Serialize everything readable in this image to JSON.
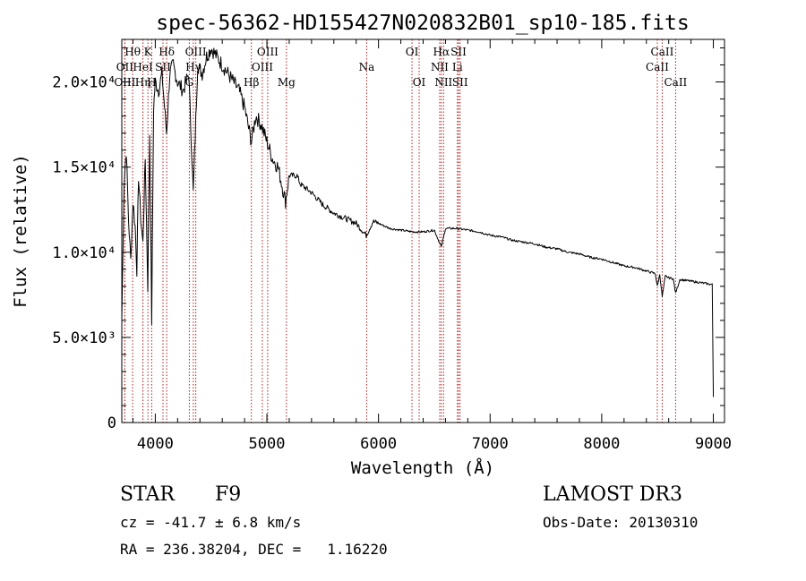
{
  "chart_data": {
    "type": "line",
    "title": "spec-56362-HD155427N020832B01_sp10-185.fits",
    "xlabel": "Wavelength (Å)",
    "ylabel": "Flux (relative)",
    "xlim": [
      3700,
      9100
    ],
    "ylim": [
      0,
      22500
    ],
    "x_ticks": [
      4000,
      5000,
      6000,
      7000,
      8000,
      9000
    ],
    "x_tick_labels": [
      "4000",
      "5000",
      "6000",
      "7000",
      "8000",
      "9000"
    ],
    "y_ticks": [
      0,
      5000,
      10000,
      15000,
      20000
    ],
    "y_tick_labels": [
      "0",
      "5.0×10³",
      "1.0×10⁴",
      "1.5×10⁴",
      "2.0×10⁴"
    ],
    "grid": false,
    "series": [
      {
        "name": "spectrum",
        "x": [
          3700,
          3720,
          3740,
          3760,
          3780,
          3800,
          3820,
          3835,
          3850,
          3870,
          3889,
          3910,
          3933,
          3950,
          3968,
          3985,
          4000,
          4030,
          4060,
          4101,
          4130,
          4160,
          4200,
          4250,
          4300,
          4340,
          4380,
          4420,
          4460,
          4500,
          4550,
          4600,
          4650,
          4700,
          4750,
          4800,
          4861,
          4900,
          4950,
          5000,
          5050,
          5100,
          5167,
          5200,
          5270,
          5300,
          5400,
          5500,
          5600,
          5700,
          5800,
          5890,
          5950,
          6000,
          6100,
          6200,
          6300,
          6400,
          6500,
          6563,
          6600,
          6700,
          6800,
          6900,
          7000,
          7100,
          7200,
          7300,
          7400,
          7500,
          7600,
          7700,
          7800,
          7900,
          8000,
          8100,
          8200,
          8300,
          8400,
          8480,
          8498,
          8520,
          8542,
          8570,
          8600,
          8640,
          8662,
          8700,
          8800,
          8900,
          8990,
          9000
        ],
        "y": [
          6000,
          14000,
          16000,
          12000,
          9500,
          13000,
          11500,
          9000,
          14500,
          12000,
          10500,
          15500,
          8000,
          17000,
          6000,
          18500,
          20000,
          19500,
          20500,
          17000,
          20500,
          21000,
          20000,
          19500,
          20500,
          13500,
          21000,
          20500,
          21500,
          22000,
          21500,
          21000,
          20500,
          20000,
          19500,
          18500,
          16500,
          18000,
          17500,
          16500,
          15500,
          15000,
          13000,
          14500,
          14500,
          14000,
          13500,
          12800,
          12300,
          12000,
          11700,
          11000,
          11800,
          11700,
          11400,
          11300,
          11200,
          11200,
          11300,
          10300,
          11400,
          11400,
          11300,
          11200,
          11000,
          10900,
          10700,
          10600,
          10500,
          10300,
          10200,
          10000,
          9900,
          9700,
          9600,
          9400,
          9200,
          9100,
          8900,
          8750,
          8000,
          8700,
          7400,
          8600,
          8500,
          8450,
          7600,
          8400,
          8300,
          8200,
          8100,
          1500
        ]
      }
    ],
    "lines": [
      {
        "label": "Hθ",
        "wavelength": 3797,
        "row": 1
      },
      {
        "label": "OII",
        "wavelength": 3727,
        "row": 2
      },
      {
        "label": "OIII",
        "wavelength": 3727,
        "row": 3
      },
      {
        "label": "K",
        "wavelength": 3934,
        "row": 1
      },
      {
        "label": "Hη",
        "wavelength": 3889,
        "row": 3
      },
      {
        "label": "HeI",
        "wavelength": 3889,
        "row": 2
      },
      {
        "label": "H",
        "wavelength": 3968,
        "row": 3
      },
      {
        "label": "SII",
        "wavelength": 4069,
        "row": 2
      },
      {
        "label": "Hδ",
        "wavelength": 4102,
        "row": 1
      },
      {
        "label": "OIII",
        "wavelength": 4363,
        "row": 1
      },
      {
        "label": "Hγ",
        "wavelength": 4341,
        "row": 2
      },
      {
        "label": "G",
        "wavelength": 4305,
        "row": 3
      },
      {
        "label": "OIII",
        "wavelength": 5007,
        "row": 1
      },
      {
        "label": "OIII",
        "wavelength": 4959,
        "row": 2
      },
      {
        "label": "Hβ",
        "wavelength": 4861,
        "row": 3
      },
      {
        "label": "Mg",
        "wavelength": 5175,
        "row": 3
      },
      {
        "label": "Na",
        "wavelength": 5894,
        "row": 2
      },
      {
        "label": "OI",
        "wavelength": 6300,
        "row": 1
      },
      {
        "label": "OI",
        "wavelength": 6364,
        "row": 3
      },
      {
        "label": "Hα",
        "wavelength": 6563,
        "row": 1
      },
      {
        "label": "NII",
        "wavelength": 6548,
        "row": 2
      },
      {
        "label": "NII",
        "wavelength": 6583,
        "row": 3
      },
      {
        "label": "SII",
        "wavelength": 6717,
        "row": 1
      },
      {
        "label": "Li",
        "wavelength": 6707,
        "row": 2
      },
      {
        "label": "SII",
        "wavelength": 6731,
        "row": 3
      },
      {
        "label": "CaII",
        "wavelength": 8542,
        "row": 1
      },
      {
        "label": "CaII",
        "wavelength": 8498,
        "row": 2
      },
      {
        "label": "CaII",
        "wavelength": 8662,
        "row": 3
      }
    ]
  },
  "info": {
    "object_class": "STAR",
    "subclass": "F9",
    "cz": "cz = -41.7 ± 6.8 km/s",
    "coords": "RA = 236.38204, DEC =   1.16220",
    "survey": "LAMOST DR3",
    "obs_date": "Obs-Date: 20130310"
  },
  "colors": {
    "spectrum": "#000000",
    "line_markers": "#b22222",
    "axes": "#000000"
  }
}
